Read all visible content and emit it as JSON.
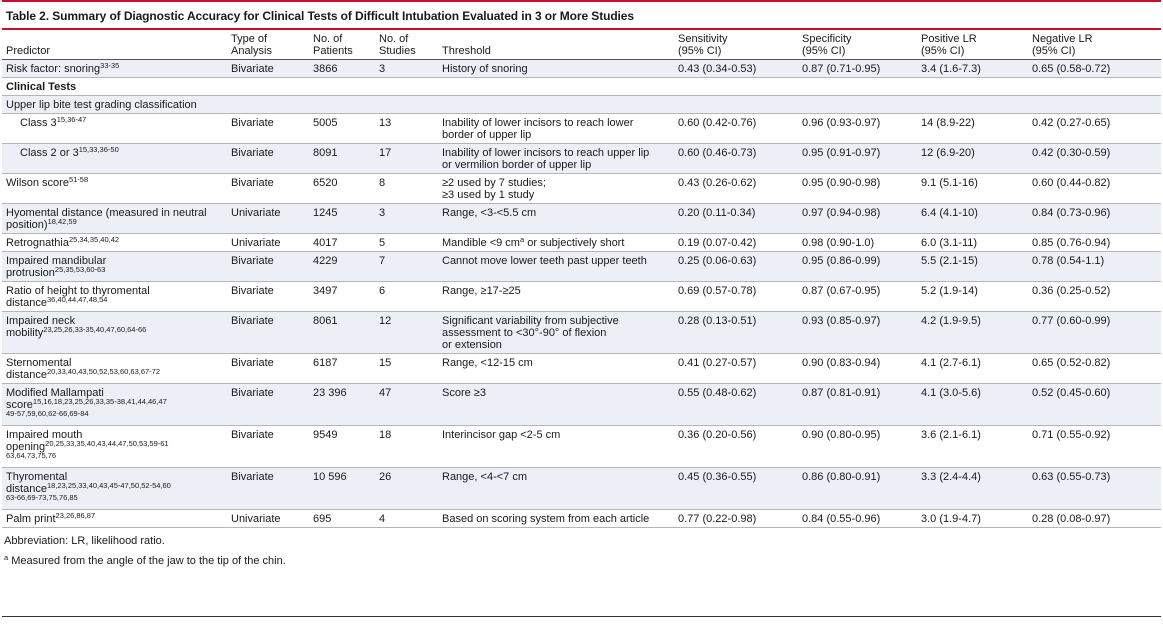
{
  "title": "Table 2. Summary of Diagnostic Accuracy for Clinical Tests of Difficult Intubation Evaluated in 3 or More Studies",
  "headers": {
    "predictor": "Predictor",
    "type_l1": "Type of",
    "type_l2": "Analysis",
    "patients_l1": "No. of",
    "patients_l2": "Patients",
    "studies_l1": "No. of",
    "studies_l2": "Studies",
    "threshold": "Threshold",
    "sens_l1": "Sensitivity",
    "sens_l2": "(95% CI)",
    "spec_l1": "Specificity",
    "spec_l2": "(95% CI)",
    "plr_l1": "Positive LR",
    "plr_l2": "(95% CI)",
    "nlr_l1": "Negative LR",
    "nlr_l2": "(95% CI)"
  },
  "rows": {
    "snoring": {
      "predictor": "Risk factor: snoring",
      "refs": "33-35",
      "type": "Bivariate",
      "patients": "3866",
      "studies": "3",
      "threshold": "History of snoring",
      "sens": "0.43 (0.34-0.53)",
      "spec": "0.87 (0.71-0.95)",
      "plr": "3.4 (1.6-7.3)",
      "nlr": "0.65 (0.58-0.72)"
    },
    "clinical_tests": "Clinical Tests",
    "ulbt": "Upper lip bite test grading classification",
    "class3": {
      "predictor": "Class 3",
      "refs": "15,36-47",
      "type": "Bivariate",
      "patients": "5005",
      "studies": "13",
      "threshold_l1": "Inability of lower incisors to reach lower",
      "threshold_l2": "border of upper lip",
      "sens": "0.60 (0.42-0.76)",
      "spec": "0.96 (0.93-0.97)",
      "plr": "14 (8.9-22)",
      "nlr": "0.42 (0.27-0.65)"
    },
    "class23": {
      "predictor": "Class 2 or 3",
      "refs": "15,33,36-50",
      "type": "Bivariate",
      "patients": "8091",
      "studies": "17",
      "threshold_l1": "Inability of lower incisors to reach upper lip",
      "threshold_l2": "or vermilion border of upper lip",
      "sens": "0.60 (0.46-0.73)",
      "spec": "0.95 (0.91-0.97)",
      "plr": "12 (6.9-20)",
      "nlr": "0.42 (0.30-0.59)"
    },
    "wilson": {
      "predictor": "Wilson score",
      "refs": "51-58",
      "type": "Bivariate",
      "patients": "6520",
      "studies": "8",
      "threshold_l1": "≥2 used by 7 studies;",
      "threshold_l2": "≥3 used by 1 study",
      "sens": "0.43 (0.26-0.62)",
      "spec": "0.95 (0.90-0.98)",
      "plr": "9.1 (5.1-16)",
      "nlr": "0.60 (0.44-0.82)"
    },
    "hyomental": {
      "predictor_l1": "Hyomental distance (measured in neutral",
      "predictor_l2": "position)",
      "refs": "18,42,59",
      "type": "Univariate",
      "patients": "1245",
      "studies": "3",
      "threshold": "Range, <3-<5.5 cm",
      "sens": "0.20 (0.11-0.34)",
      "spec": "0.97 (0.94-0.98)",
      "plr": "6.4 (4.1-10)",
      "nlr": "0.84 (0.73-0.96)"
    },
    "retrognathia": {
      "predictor": "Retrognathia",
      "refs": "25,34,35,40,42",
      "type": "Univariate",
      "patients": "4017",
      "studies": "5",
      "threshold_a": "Mandible <9 cm",
      "threshold_sup": "a",
      "threshold_b": " or subjectively short",
      "sens": "0.19 (0.07-0.42)",
      "spec": "0.98 (0.90-1.0)",
      "plr": "6.0 (3.1-11)",
      "nlr": "0.85 (0.76-0.94)"
    },
    "mandibular": {
      "predictor_l1": "Impaired mandibular",
      "predictor_l2": "protrusion",
      "refs": "25,35,53,60-63",
      "type": "Bivariate",
      "patients": "4229",
      "studies": "7",
      "threshold": "Cannot move lower teeth past upper teeth",
      "sens": "0.25 (0.06-0.63)",
      "spec": "0.95 (0.86-0.99)",
      "plr": "5.5 (2.1-15)",
      "nlr": "0.78 (0.54-1.1)"
    },
    "ratio": {
      "predictor_l1": "Ratio of height to thyromental",
      "predictor_l2": "distance",
      "refs": "36,40,44,47,48,54",
      "type": "Bivariate",
      "patients": "3497",
      "studies": "6",
      "threshold": "Range, ≥17-≥25",
      "sens": "0.69 (0.57-0.78)",
      "spec": "0.87 (0.67-0.95)",
      "plr": "5.2 (1.9-14)",
      "nlr": "0.36 (0.25-0.52)"
    },
    "neck": {
      "predictor_l1": "Impaired neck",
      "predictor_l2": "mobility",
      "refs": "23,25,26,33-35,40,47,60,64-66",
      "type": "Bivariate",
      "patients": "8061",
      "studies": "12",
      "threshold_l1": "Significant variability from subjective",
      "threshold_l2": "assessment to <30°-90° of flexion",
      "threshold_l3": "or extension",
      "sens": "0.28 (0.13-0.51)",
      "spec": "0.93 (0.85-0.97)",
      "plr": "4.2 (1.9-9.5)",
      "nlr": "0.77 (0.60-0.99)"
    },
    "sternomental": {
      "predictor_l1": "Sternomental",
      "predictor_l2": "distance",
      "refs": "20,33,40,43,50,52,53,60,63,67-72",
      "type": "Bivariate",
      "patients": "6187",
      "studies": "15",
      "threshold": "Range, <12-15 cm",
      "sens": "0.41 (0.27-0.57)",
      "spec": "0.90 (0.83-0.94)",
      "plr": "4.1 (2.7-6.1)",
      "nlr": "0.65 (0.52-0.82)"
    },
    "mallampati": {
      "predictor_l1": "Modified Mallampati",
      "predictor_l2": "score",
      "refs_l2": "15,16,18,23,25,26,33,35-38,41,44,46,47",
      "refs_l3": "49-57,59,60,62-66,69-84",
      "type": "Bivariate",
      "patients": "23 396",
      "studies": "47",
      "threshold": "Score ≥3",
      "sens": "0.55 (0.48-0.62)",
      "spec": "0.87 (0.81-0.91)",
      "plr": "4.1 (3.0-5.6)",
      "nlr": "0.52 (0.45-0.60)"
    },
    "mouth": {
      "predictor_l1": "Impaired mouth",
      "predictor_l2": "opening",
      "refs_l2": "20,25,33,35,40,43,44,47,50,53,59-61",
      "refs_l3": "63,64,73,75,76",
      "type": "Bivariate",
      "patients": "9549",
      "studies": "18",
      "threshold": "Interincisor gap <2-5 cm",
      "sens": "0.36 (0.20-0.56)",
      "spec": "0.90 (0.80-0.95)",
      "plr": "3.6 (2.1-6.1)",
      "nlr": "0.71 (0.55-0.92)"
    },
    "thyromental": {
      "predictor_l1": "Thyromental",
      "predictor_l2": "distance",
      "refs_l2": "18,23,25,33,40,43,45-47,50,52-54,60",
      "refs_l3": "63-66,69-73,75,76,85",
      "type": "Bivariate",
      "patients": "10 596",
      "studies": "26",
      "threshold": "Range, <4-<7 cm",
      "sens": "0.45 (0.36-0.55)",
      "spec": "0.86 (0.80-0.91)",
      "plr": "3.3 (2.4-4.4)",
      "nlr": "0.63 (0.55-0.73)"
    },
    "palm": {
      "predictor": "Palm print",
      "refs": "23,26,86,87",
      "type": "Univariate",
      "patients": "695",
      "studies": "4",
      "threshold": "Based on scoring system from each article",
      "sens": "0.77 (0.22-0.98)",
      "spec": "0.84 (0.55-0.96)",
      "plr": "3.0 (1.9-4.7)",
      "nlr": "0.28 (0.08-0.97)"
    }
  },
  "footer": {
    "abbreviation": "Abbreviation: LR, likelihood ratio.",
    "note_mark": "a",
    "note_text": " Measured from the angle of the jaw to the tip of the chin."
  }
}
